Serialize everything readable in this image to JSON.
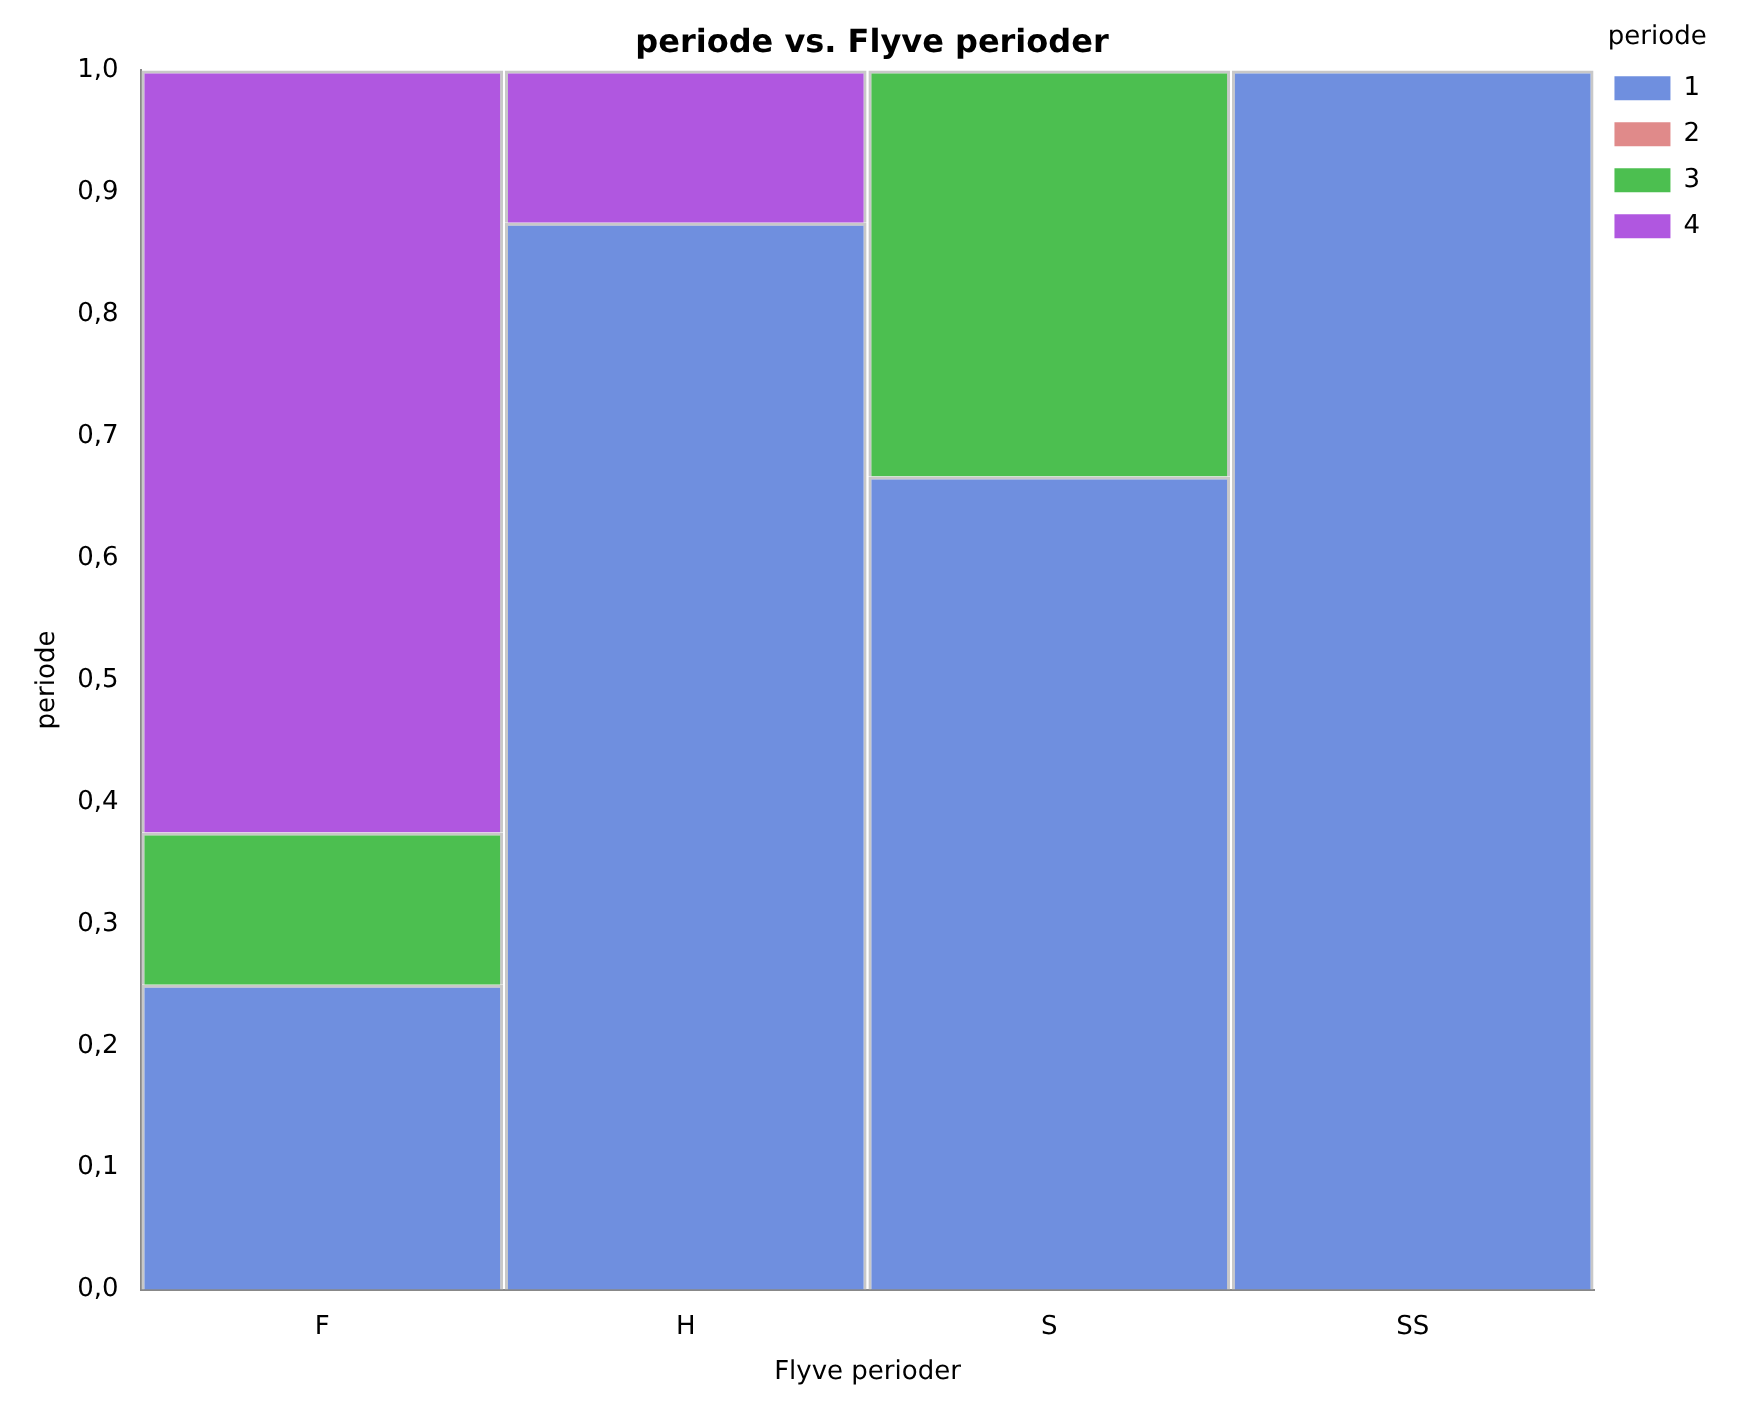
{
  "chart_data": {
    "type": "bar",
    "title": "periode vs. Flyve perioder",
    "xlabel": "Flyve perioder",
    "ylabel": "periode",
    "legend_title": "periode",
    "categories": [
      "F",
      "H",
      "S",
      "SS"
    ],
    "stacked": true,
    "legend": "top right",
    "grid": false,
    "series": [
      {
        "name": "1",
        "color": "#6f8fdf",
        "values": [
          0.25,
          0.875,
          0.667,
          1.0
        ]
      },
      {
        "name": "2",
        "color": "#e08a8a",
        "values": [
          0,
          0,
          0,
          0
        ]
      },
      {
        "name": "3",
        "color": "#4cbf50",
        "values": [
          0.125,
          0,
          0.333,
          0
        ]
      },
      {
        "name": "4",
        "color": "#b057e0",
        "values": [
          0.625,
          0.125,
          0,
          0
        ]
      }
    ],
    "ylim": [
      0,
      1
    ],
    "yticks": [
      {
        "value": 0,
        "label": "0,0"
      },
      {
        "value": 0.1,
        "label": "0,1"
      },
      {
        "value": 0.2,
        "label": "0,2"
      },
      {
        "value": 0.3,
        "label": "0,3"
      },
      {
        "value": 0.4,
        "label": "0,4"
      },
      {
        "value": 0.5,
        "label": "0,5"
      },
      {
        "value": 0.6,
        "label": "0,6"
      },
      {
        "value": 0.7,
        "label": "0,7"
      },
      {
        "value": 0.8,
        "label": "0,8"
      },
      {
        "value": 0.9,
        "label": "0,9"
      },
      {
        "value": 1,
        "label": "1,0"
      }
    ]
  }
}
